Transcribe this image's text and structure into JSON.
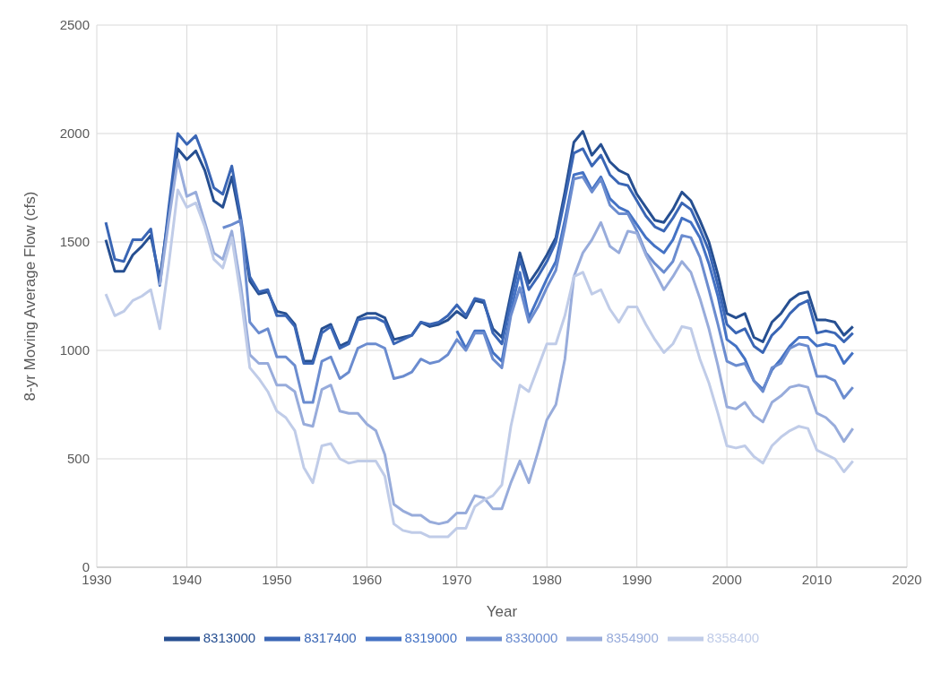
{
  "chart_data": {
    "type": "line",
    "xlabel": "Year",
    "ylabel": "8-yr Moving Average Flow (cfs)",
    "x": [
      1931,
      1932,
      1933,
      1934,
      1935,
      1936,
      1937,
      1938,
      1939,
      1940,
      1941,
      1942,
      1943,
      1944,
      1945,
      1946,
      1947,
      1948,
      1949,
      1950,
      1951,
      1952,
      1953,
      1954,
      1955,
      1956,
      1957,
      1958,
      1959,
      1960,
      1961,
      1962,
      1963,
      1964,
      1965,
      1966,
      1967,
      1968,
      1969,
      1970,
      1971,
      1972,
      1973,
      1974,
      1975,
      1976,
      1977,
      1978,
      1979,
      1980,
      1981,
      1982,
      1983,
      1984,
      1985,
      1986,
      1987,
      1988,
      1989,
      1990,
      1991,
      1992,
      1993,
      1994,
      1995,
      1996,
      1997,
      1998,
      1999,
      2000,
      2001,
      2002,
      2003,
      2004,
      2005,
      2006,
      2007,
      2008,
      2009,
      2010,
      2011,
      2012,
      2013,
      2014
    ],
    "xlim": [
      1930,
      2020
    ],
    "xticks": [
      1930,
      1940,
      1950,
      1960,
      1970,
      1980,
      1990,
      2000,
      2010,
      2020
    ],
    "ylim": [
      0,
      2500
    ],
    "yticks": [
      0,
      500,
      1000,
      1500,
      2000,
      2500
    ],
    "grid": true,
    "legend": "bottom",
    "marker": "none",
    "line_style": "solid",
    "series": [
      {
        "name": "8313000",
        "color": "#264f91",
        "values": [
          1510,
          1365,
          1365,
          1440,
          1480,
          1530,
          1330,
          1630,
          1930,
          1880,
          1920,
          1830,
          1690,
          1660,
          1800,
          1590,
          1320,
          1260,
          1270,
          1180,
          1170,
          1120,
          950,
          950,
          1100,
          1120,
          1020,
          1040,
          1150,
          1170,
          1170,
          1150,
          1050,
          1060,
          1070,
          1130,
          1110,
          1120,
          1140,
          1180,
          1150,
          1230,
          1220,
          1100,
          1060,
          1260,
          1450,
          1310,
          1370,
          1440,
          1520,
          1730,
          1960,
          2010,
          1900,
          1950,
          1870,
          1830,
          1810,
          1720,
          1660,
          1600,
          1590,
          1650,
          1730,
          1690,
          1600,
          1500,
          1350,
          1170,
          1150,
          1170,
          1060,
          1040,
          1130,
          1170,
          1230,
          1260,
          1270,
          1140,
          1140,
          1130,
          1070,
          1110
        ]
      },
      {
        "name": "8317400",
        "color": "#3a66b5",
        "values": [
          1590,
          1420,
          1410,
          1510,
          1510,
          1560,
          1300,
          1660,
          2000,
          1950,
          1990,
          1880,
          1750,
          1720,
          1850,
          1610,
          1340,
          1270,
          1280,
          1160,
          1160,
          1110,
          940,
          940,
          1080,
          1110,
          1010,
          1030,
          1140,
          1150,
          1150,
          1130,
          1030,
          1050,
          1070,
          1130,
          1120,
          1130,
          1160,
          1210,
          1160,
          1240,
          1230,
          1080,
          1030,
          1230,
          1420,
          1280,
          1340,
          1410,
          1500,
          1700,
          1910,
          1930,
          1850,
          1900,
          1810,
          1770,
          1760,
          1690,
          1620,
          1570,
          1550,
          1610,
          1680,
          1650,
          1560,
          1460,
          1300,
          1120,
          1080,
          1100,
          1020,
          990,
          1070,
          1110,
          1170,
          1210,
          1230,
          1080,
          1090,
          1080,
          1040,
          1080
        ]
      },
      {
        "name": "8319000",
        "color": "#4472c4",
        "values": [
          null,
          null,
          null,
          null,
          null,
          null,
          null,
          null,
          null,
          null,
          null,
          null,
          null,
          null,
          null,
          null,
          null,
          null,
          null,
          null,
          null,
          null,
          null,
          null,
          null,
          null,
          null,
          null,
          null,
          null,
          null,
          null,
          null,
          null,
          null,
          null,
          null,
          null,
          null,
          1090,
          1010,
          1090,
          1090,
          990,
          950,
          1180,
          1360,
          1150,
          1240,
          1330,
          1410,
          1600,
          1810,
          1820,
          1740,
          1800,
          1700,
          1660,
          1640,
          1580,
          1520,
          1480,
          1450,
          1510,
          1610,
          1590,
          1520,
          1400,
          1250,
          1050,
          1020,
          960,
          860,
          820,
          910,
          960,
          1020,
          1060,
          1060,
          1020,
          1030,
          1020,
          940,
          990
        ]
      },
      {
        "name": "8330000",
        "color": "#6b8ccf",
        "values": [
          null,
          null,
          null,
          null,
          null,
          null,
          null,
          null,
          null,
          null,
          null,
          null,
          null,
          1565,
          1580,
          1600,
          1130,
          1080,
          1100,
          970,
          970,
          930,
          760,
          760,
          950,
          970,
          870,
          900,
          1010,
          1030,
          1030,
          1010,
          870,
          880,
          900,
          960,
          940,
          950,
          980,
          1050,
          1000,
          1080,
          1080,
          960,
          920,
          1160,
          1290,
          1130,
          1200,
          1290,
          1370,
          1570,
          1790,
          1800,
          1730,
          1790,
          1670,
          1630,
          1630,
          1550,
          1450,
          1400,
          1360,
          1410,
          1530,
          1520,
          1430,
          1280,
          1120,
          950,
          930,
          940,
          860,
          810,
          920,
          940,
          1010,
          1030,
          1020,
          880,
          880,
          860,
          780,
          830
        ]
      },
      {
        "name": "8354900",
        "color": "#98acdb",
        "values": [
          null,
          null,
          null,
          null,
          null,
          null,
          1300,
          1600,
          1880,
          1710,
          1730,
          1590,
          1450,
          1420,
          1550,
          1300,
          980,
          940,
          940,
          840,
          840,
          810,
          660,
          650,
          820,
          840,
          720,
          710,
          710,
          660,
          630,
          520,
          290,
          260,
          240,
          240,
          210,
          200,
          210,
          250,
          250,
          330,
          320,
          270,
          270,
          390,
          490,
          390,
          530,
          680,
          750,
          960,
          1340,
          1450,
          1510,
          1590,
          1480,
          1450,
          1550,
          1540,
          1440,
          1360,
          1280,
          1340,
          1410,
          1360,
          1240,
          1100,
          930,
          740,
          730,
          760,
          700,
          670,
          760,
          790,
          830,
          840,
          830,
          710,
          690,
          650,
          580,
          640
        ]
      },
      {
        "name": "8358400",
        "color": "#c0cce8",
        "values": [
          1260,
          1160,
          1180,
          1230,
          1250,
          1280,
          1100,
          1400,
          1740,
          1660,
          1680,
          1570,
          1420,
          1380,
          1520,
          1250,
          920,
          870,
          810,
          720,
          690,
          630,
          460,
          390,
          560,
          570,
          500,
          480,
          490,
          490,
          490,
          420,
          200,
          170,
          160,
          160,
          140,
          140,
          140,
          180,
          180,
          280,
          310,
          330,
          380,
          650,
          840,
          810,
          920,
          1030,
          1030,
          1160,
          1340,
          1360,
          1260,
          1280,
          1190,
          1130,
          1200,
          1200,
          1120,
          1050,
          990,
          1030,
          1110,
          1100,
          960,
          850,
          710,
          560,
          550,
          560,
          510,
          480,
          560,
          600,
          630,
          650,
          640,
          540,
          520,
          500,
          440,
          490
        ]
      }
    ]
  }
}
